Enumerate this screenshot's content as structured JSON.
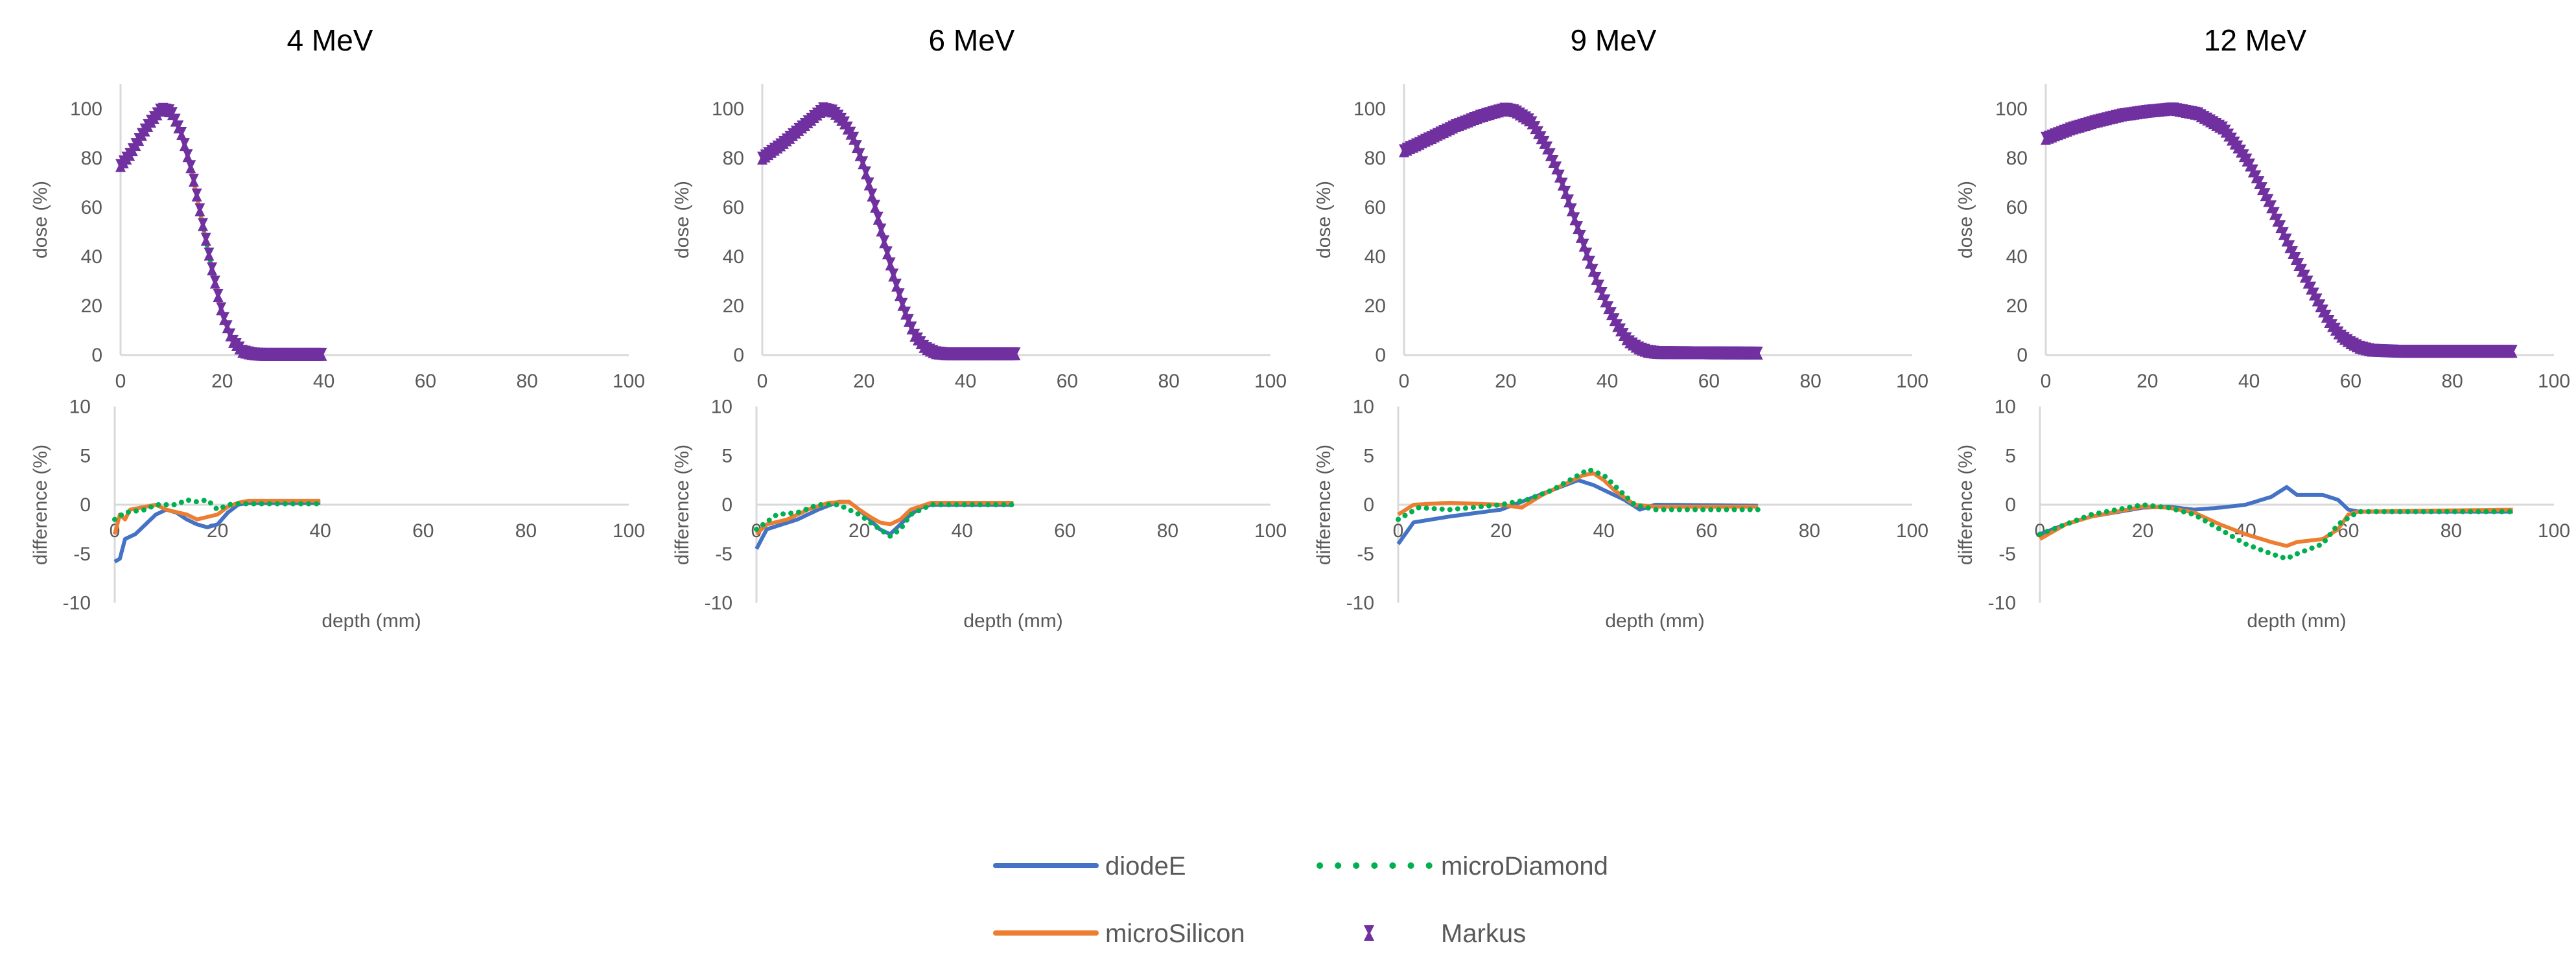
{
  "chart_data": {
    "type": "line",
    "colors": {
      "diodeE": "#4472c4",
      "microSilicon": "#ed7d31",
      "microDiamond": "#00b050",
      "Markus": "#7030a0",
      "axis": "#d9d9d9"
    },
    "legend": {
      "placement": "bottom",
      "entries": [
        "diodeE",
        "microDiamond",
        "microSilicon",
        "Markus"
      ]
    },
    "panels": [
      {
        "title": "4 MeV",
        "dose": {
          "ylabel": "dose (%)",
          "xlim": [
            0,
            100
          ],
          "ylim": [
            0,
            110
          ],
          "xticks": [
            0,
            20,
            40,
            60,
            80,
            100
          ],
          "yticks": [
            0,
            20,
            40,
            60,
            80,
            100
          ],
          "x": [
            0,
            2,
            4,
            6,
            8,
            10,
            12,
            14,
            16,
            18,
            20,
            22,
            24,
            26,
            28,
            40
          ],
          "y": [
            77,
            82,
            89,
            95,
            100,
            99,
            90,
            75,
            55,
            35,
            17,
            6,
            1.5,
            0.5,
            0.3,
            0.3
          ]
        },
        "diff": {
          "ylabel": "difference (%)",
          "xlabel": "depth (mm)",
          "xlim": [
            0,
            100
          ],
          "ylim": [
            -10,
            10
          ],
          "xticks": [
            0,
            20,
            40,
            60,
            80,
            100
          ],
          "yticks": [
            -10,
            -5,
            0,
            5,
            10
          ],
          "series": [
            {
              "name": "diodeE",
              "x": [
                0,
                1,
                2,
                4,
                6,
                8,
                10,
                12,
                14,
                16,
                18,
                20,
                22,
                24,
                26,
                40
              ],
              "y": [
                -5.8,
                -5.5,
                -3.5,
                -3,
                -2,
                -1,
                -0.5,
                -0.8,
                -1.5,
                -2,
                -2.3,
                -2,
                -0.8,
                0,
                0.2,
                0.2
              ]
            },
            {
              "name": "microSilicon",
              "x": [
                0,
                1,
                2,
                3,
                6,
                8,
                10,
                14,
                16,
                20,
                22,
                24,
                26,
                40
              ],
              "y": [
                -3,
                -1,
                -1.5,
                -0.5,
                -0.2,
                0,
                -0.5,
                -1,
                -1.5,
                -1,
                -0.2,
                0.2,
                0.4,
                0.4
              ]
            },
            {
              "name": "microDiamond",
              "x": [
                0,
                2,
                6,
                8,
                12,
                14,
                16,
                18,
                20,
                22,
                24,
                40
              ],
              "y": [
                -1.5,
                -0.8,
                -0.5,
                0,
                0,
                0.5,
                0.3,
                0.5,
                -0.5,
                0,
                0.1,
                0.1
              ]
            }
          ]
        }
      },
      {
        "title": "6 MeV",
        "dose": {
          "ylabel": "dose (%)",
          "xlim": [
            0,
            100
          ],
          "ylim": [
            0,
            110
          ],
          "xticks": [
            0,
            20,
            40,
            60,
            80,
            100
          ],
          "yticks": [
            0,
            20,
            40,
            60,
            80,
            100
          ],
          "x": [
            0,
            4,
            8,
            12,
            14,
            16,
            18,
            20,
            22,
            24,
            26,
            28,
            30,
            32,
            34,
            36,
            50
          ],
          "y": [
            80,
            86,
            93,
            100,
            99,
            95,
            88,
            77,
            62,
            46,
            31,
            18,
            8,
            3,
            1,
            0.5,
            0.5
          ]
        },
        "diff": {
          "ylabel": "difference (%)",
          "xlabel": "depth (mm)",
          "xlim": [
            0,
            100
          ],
          "ylim": [
            -10,
            10
          ],
          "xticks": [
            0,
            20,
            40,
            60,
            80,
            100
          ],
          "yticks": [
            -10,
            -5,
            0,
            5,
            10
          ],
          "series": [
            {
              "name": "diodeE",
              "x": [
                0,
                2,
                5,
                8,
                12,
                16,
                18,
                20,
                22,
                24,
                26,
                28,
                30,
                32,
                34,
                50
              ],
              "y": [
                -4.5,
                -2.5,
                -2,
                -1.5,
                -0.5,
                0.3,
                0.3,
                -0.5,
                -1.5,
                -2.5,
                -3,
                -2,
                -1,
                -0.3,
                0,
                0
              ]
            },
            {
              "name": "microSilicon",
              "x": [
                0,
                2,
                6,
                10,
                14,
                18,
                20,
                22,
                24,
                26,
                28,
                30,
                34,
                50
              ],
              "y": [
                -3,
                -2,
                -1.5,
                -0.5,
                0.2,
                0.3,
                -0.5,
                -1.2,
                -1.8,
                -2,
                -1.5,
                -0.5,
                0.2,
                0.2
              ]
            },
            {
              "name": "microDiamond",
              "x": [
                0,
                4,
                8,
                12,
                16,
                20,
                24,
                26,
                28,
                30,
                34,
                50
              ],
              "y": [
                -2.5,
                -1,
                -0.8,
                0,
                0,
                -1,
                -2.5,
                -3.2,
                -2.5,
                -1,
                0,
                0
              ]
            }
          ]
        }
      },
      {
        "title": "9 MeV",
        "dose": {
          "ylabel": "dose (%)",
          "xlim": [
            0,
            100
          ],
          "ylim": [
            0,
            110
          ],
          "xticks": [
            0,
            20,
            40,
            60,
            80,
            100
          ],
          "yticks": [
            0,
            20,
            40,
            60,
            80,
            100
          ],
          "x": [
            0,
            5,
            10,
            15,
            20,
            22,
            25,
            28,
            30,
            32,
            34,
            36,
            38,
            40,
            42,
            44,
            46,
            48,
            50,
            70
          ],
          "y": [
            83,
            88,
            93,
            97,
            100,
            99,
            95,
            85,
            76,
            65,
            53,
            41,
            30,
            20,
            12,
            6,
            3,
            1.5,
            1,
            0.8
          ]
        },
        "diff": {
          "ylabel": "difference (%)",
          "xlabel": "depth (mm)",
          "xlim": [
            0,
            100
          ],
          "ylim": [
            -10,
            10
          ],
          "xticks": [
            0,
            20,
            40,
            60,
            80,
            100
          ],
          "yticks": [
            -10,
            -5,
            0,
            5,
            10
          ],
          "series": [
            {
              "name": "diodeE",
              "x": [
                0,
                3,
                10,
                20,
                25,
                30,
                35,
                38,
                40,
                44,
                47,
                50,
                70
              ],
              "y": [
                -4,
                -1.8,
                -1.2,
                -0.5,
                0.5,
                1.5,
                2.5,
                2,
                1.5,
                0.5,
                -0.5,
                0,
                -0.1
              ]
            },
            {
              "name": "microSilicon",
              "x": [
                0,
                3,
                10,
                20,
                24,
                28,
                32,
                36,
                38,
                40,
                42,
                46,
                50,
                70
              ],
              "y": [
                -1,
                0,
                0.2,
                0,
                -0.3,
                1,
                2,
                3,
                3.2,
                2.5,
                1.5,
                0,
                -0.2,
                -0.2
              ]
            },
            {
              "name": "microDiamond",
              "x": [
                0,
                4,
                10,
                20,
                25,
                30,
                35,
                37,
                40,
                43,
                46,
                50,
                70
              ],
              "y": [
                -1.5,
                -0.3,
                -0.5,
                0,
                0.5,
                1.5,
                3,
                3.6,
                3,
                1.5,
                0,
                -0.5,
                -0.5
              ]
            }
          ]
        }
      },
      {
        "title": "12 MeV",
        "dose": {
          "ylabel": "dose (%)",
          "xlim": [
            0,
            100
          ],
          "ylim": [
            0,
            110
          ],
          "xticks": [
            0,
            20,
            40,
            60,
            80,
            100
          ],
          "yticks": [
            0,
            20,
            40,
            60,
            80,
            100
          ],
          "x": [
            0,
            5,
            10,
            15,
            20,
            25,
            30,
            35,
            38,
            40,
            42,
            44,
            46,
            48,
            50,
            52,
            54,
            56,
            58,
            60,
            62,
            64,
            70,
            92
          ],
          "y": [
            88,
            92,
            95,
            97.5,
            99,
            100,
            98,
            92,
            84,
            78,
            70,
            62,
            53,
            44,
            36,
            28,
            20,
            13,
            8,
            5,
            3,
            2,
            1.5,
            1.5
          ]
        },
        "diff": {
          "ylabel": "difference (%)",
          "xlabel": "depth (mm)",
          "xlim": [
            0,
            100
          ],
          "ylim": [
            -10,
            10
          ],
          "xticks": [
            0,
            20,
            40,
            60,
            80,
            100
          ],
          "yticks": [
            -10,
            -5,
            0,
            5,
            10
          ],
          "series": [
            {
              "name": "diodeE",
              "x": [
                0,
                5,
                10,
                20,
                25,
                30,
                35,
                40,
                45,
                48,
                50,
                55,
                58,
                60,
                62,
                92
              ],
              "y": [
                -3,
                -2,
                -1.2,
                -0.3,
                -0.2,
                -0.5,
                -0.3,
                0,
                0.8,
                1.8,
                1,
                1,
                0.5,
                -0.5,
                -0.7,
                -0.7
              ]
            },
            {
              "name": "microSilicon",
              "x": [
                0,
                5,
                10,
                20,
                25,
                30,
                35,
                40,
                45,
                48,
                50,
                55,
                58,
                60,
                62,
                92
              ],
              "y": [
                -3.5,
                -2,
                -1.2,
                -0.2,
                -0.3,
                -0.8,
                -2,
                -3,
                -3.8,
                -4.2,
                -3.8,
                -3.5,
                -2.5,
                -1,
                -0.7,
                -0.5
              ]
            },
            {
              "name": "microDiamond",
              "x": [
                0,
                5,
                10,
                20,
                25,
                30,
                35,
                40,
                45,
                48,
                50,
                55,
                58,
                62,
                92
              ],
              "y": [
                -3,
                -2,
                -1,
                0,
                -0.3,
                -1,
                -2.5,
                -4,
                -5,
                -5.5,
                -5,
                -4,
                -2,
                -0.7,
                -0.7
              ]
            }
          ]
        }
      }
    ]
  }
}
